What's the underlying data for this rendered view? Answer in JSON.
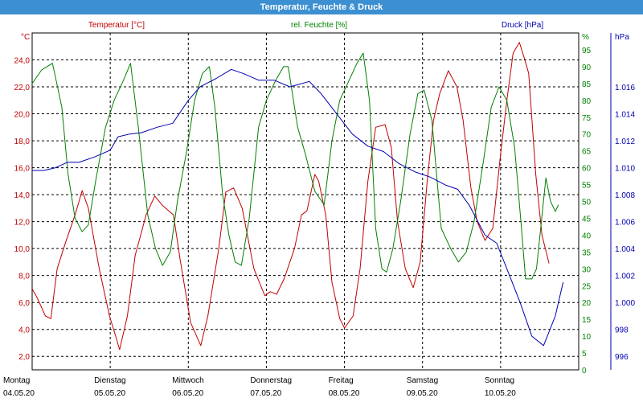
{
  "window": {
    "title": "Temperatur, Feuchte & Druck"
  },
  "colors": {
    "temperature": "#c00000",
    "humidity": "#008000",
    "pressure": "#0000b0",
    "grid": "#000000"
  },
  "chart_data": {
    "type": "line",
    "title": "Temperatur, Feuchte & Druck",
    "grid": true,
    "x_ticks": [
      {
        "day": "Montag",
        "date": "04.05.20"
      },
      {
        "day": "Dienstag",
        "date": "05.05.20"
      },
      {
        "day": "Mittwoch",
        "date": "06.05.20"
      },
      {
        "day": "Donnerstag",
        "date": "07.05.20"
      },
      {
        "day": "Freitag",
        "date": "08.05.20"
      },
      {
        "day": "Samstag",
        "date": "09.05.20"
      },
      {
        "day": "Sonntag",
        "date": "10.05.20"
      }
    ],
    "x_range_days": [
      0,
      7
    ],
    "axes": {
      "temperature": {
        "label": "Temperatur [°C]",
        "unit": "°C",
        "range": [
          1.0,
          26.0
        ],
        "ticks": [
          "2,0",
          "4,0",
          "6,0",
          "8,0",
          "10,0",
          "12,0",
          "14,0",
          "16,0",
          "18,0",
          "20,0",
          "22,0",
          "24,0"
        ],
        "tick_values": [
          2,
          4,
          6,
          8,
          10,
          12,
          14,
          16,
          18,
          20,
          22,
          24
        ]
      },
      "humidity": {
        "label": "rel. Feuchte [%]",
        "unit": "%",
        "range": [
          0,
          100
        ],
        "ticks": [
          "0",
          "5",
          "10",
          "15",
          "20",
          "25",
          "30",
          "35",
          "40",
          "45",
          "50",
          "55",
          "60",
          "65",
          "70",
          "75",
          "80",
          "85",
          "90",
          "95"
        ],
        "tick_values": [
          0,
          5,
          10,
          15,
          20,
          25,
          30,
          35,
          40,
          45,
          50,
          55,
          60,
          65,
          70,
          75,
          80,
          85,
          90,
          95
        ]
      },
      "pressure": {
        "label": "Druck [hPa]",
        "unit": "hPa",
        "range": [
          995,
          1020
        ],
        "ticks": [
          "996",
          "998",
          "1.000",
          "1.002",
          "1.004",
          "1.006",
          "1.008",
          "1.010",
          "1.012",
          "1.014",
          "1.016"
        ],
        "tick_values": [
          996,
          998,
          1000,
          1002,
          1004,
          1006,
          1008,
          1010,
          1012,
          1014,
          1016
        ]
      }
    },
    "series": [
      {
        "name": "Temperatur [°C]",
        "axis": "temperature",
        "points": [
          [
            0,
            7.0
          ],
          [
            0.06,
            6.4
          ],
          [
            0.17,
            5.0
          ],
          [
            0.24,
            4.8
          ],
          [
            0.32,
            8.5
          ],
          [
            0.43,
            10.5
          ],
          [
            0.55,
            12.5
          ],
          [
            0.64,
            14.3
          ],
          [
            0.72,
            13.0
          ],
          [
            0.86,
            8.5
          ],
          [
            0.99,
            5.0
          ],
          [
            1.07,
            3.5
          ],
          [
            1.12,
            2.5
          ],
          [
            1.22,
            5.0
          ],
          [
            1.32,
            9.5
          ],
          [
            1.46,
            12.5
          ],
          [
            1.57,
            13.9
          ],
          [
            1.67,
            13.2
          ],
          [
            1.81,
            12.5
          ],
          [
            1.9,
            9.0
          ],
          [
            2.03,
            4.5
          ],
          [
            2.16,
            2.8
          ],
          [
            2.25,
            5.0
          ],
          [
            2.39,
            10.0
          ],
          [
            2.48,
            14.2
          ],
          [
            2.58,
            14.5
          ],
          [
            2.69,
            13.0
          ],
          [
            2.84,
            8.5
          ],
          [
            2.98,
            6.5
          ],
          [
            3.05,
            6.8
          ],
          [
            3.13,
            6.6
          ],
          [
            3.23,
            7.8
          ],
          [
            3.36,
            10.0
          ],
          [
            3.45,
            12.5
          ],
          [
            3.52,
            12.8
          ],
          [
            3.62,
            15.5
          ],
          [
            3.67,
            15.0
          ],
          [
            3.76,
            12.5
          ],
          [
            3.84,
            7.5
          ],
          [
            3.94,
            4.8
          ],
          [
            4.0,
            4.1
          ],
          [
            4.11,
            5.0
          ],
          [
            4.2,
            8.5
          ],
          [
            4.3,
            15.0
          ],
          [
            4.4,
            19.0
          ],
          [
            4.52,
            19.2
          ],
          [
            4.6,
            17.5
          ],
          [
            4.68,
            12.0
          ],
          [
            4.78,
            8.5
          ],
          [
            4.88,
            7.1
          ],
          [
            4.97,
            9.0
          ],
          [
            5.06,
            15.0
          ],
          [
            5.14,
            19.5
          ],
          [
            5.22,
            21.5
          ],
          [
            5.33,
            23.2
          ],
          [
            5.44,
            22.0
          ],
          [
            5.52,
            19.5
          ],
          [
            5.62,
            14.5
          ],
          [
            5.7,
            12.0
          ],
          [
            5.8,
            10.6
          ],
          [
            5.9,
            11.5
          ],
          [
            5.99,
            16.5
          ],
          [
            6.08,
            21.0
          ],
          [
            6.16,
            24.5
          ],
          [
            6.24,
            25.3
          ],
          [
            6.3,
            24.2
          ],
          [
            6.36,
            23.0
          ],
          [
            6.45,
            15.5
          ],
          [
            6.53,
            11.0
          ],
          [
            6.62,
            8.9
          ]
        ]
      },
      {
        "name": "rel. Feuchte [%]",
        "axis": "humidity",
        "points": [
          [
            0,
            85
          ],
          [
            0.12,
            89
          ],
          [
            0.26,
            91
          ],
          [
            0.38,
            78
          ],
          [
            0.46,
            58
          ],
          [
            0.55,
            45
          ],
          [
            0.64,
            41
          ],
          [
            0.72,
            43
          ],
          [
            0.82,
            57
          ],
          [
            0.94,
            72
          ],
          [
            1.05,
            80
          ],
          [
            1.17,
            86
          ],
          [
            1.26,
            91
          ],
          [
            1.36,
            72
          ],
          [
            1.48,
            46
          ],
          [
            1.58,
            36
          ],
          [
            1.67,
            31
          ],
          [
            1.77,
            35
          ],
          [
            1.86,
            50
          ],
          [
            1.98,
            65
          ],
          [
            2.08,
            80
          ],
          [
            2.18,
            88
          ],
          [
            2.27,
            90
          ],
          [
            2.34,
            78
          ],
          [
            2.44,
            52
          ],
          [
            2.52,
            40
          ],
          [
            2.6,
            32
          ],
          [
            2.68,
            31
          ],
          [
            2.78,
            45
          ],
          [
            2.9,
            72
          ],
          [
            3.0,
            80
          ],
          [
            3.12,
            86
          ],
          [
            3.22,
            90
          ],
          [
            3.28,
            90
          ],
          [
            3.4,
            72
          ],
          [
            3.5,
            64
          ],
          [
            3.62,
            53
          ],
          [
            3.74,
            49
          ],
          [
            3.84,
            68
          ],
          [
            3.94,
            80
          ],
          [
            4.06,
            86
          ],
          [
            4.16,
            91
          ],
          [
            4.24,
            94
          ],
          [
            4.32,
            80
          ],
          [
            4.4,
            42
          ],
          [
            4.48,
            30
          ],
          [
            4.54,
            29
          ],
          [
            4.62,
            36
          ],
          [
            4.72,
            50
          ],
          [
            4.84,
            70
          ],
          [
            4.94,
            82
          ],
          [
            5.02,
            83
          ],
          [
            5.12,
            74
          ],
          [
            5.24,
            42
          ],
          [
            5.36,
            36
          ],
          [
            5.46,
            32
          ],
          [
            5.56,
            35
          ],
          [
            5.66,
            44
          ],
          [
            5.78,
            62
          ],
          [
            5.88,
            78
          ],
          [
            5.98,
            84
          ],
          [
            6.08,
            80
          ],
          [
            6.18,
            66
          ],
          [
            6.26,
            44
          ],
          [
            6.32,
            27
          ],
          [
            6.4,
            27
          ],
          [
            6.46,
            30
          ],
          [
            6.54,
            48
          ],
          [
            6.58,
            57
          ],
          [
            6.64,
            50
          ],
          [
            6.7,
            47
          ],
          [
            6.74,
            49
          ]
        ]
      },
      {
        "name": "Druck [hPa]",
        "axis": "pressure",
        "points": [
          [
            0,
            1009.8
          ],
          [
            0.15,
            1009.8
          ],
          [
            0.3,
            1010.0
          ],
          [
            0.45,
            1010.4
          ],
          [
            0.6,
            1010.4
          ],
          [
            0.8,
            1010.8
          ],
          [
            1.0,
            1011.3
          ],
          [
            1.1,
            1012.3
          ],
          [
            1.25,
            1012.5
          ],
          [
            1.4,
            1012.6
          ],
          [
            1.6,
            1013.0
          ],
          [
            1.8,
            1013.3
          ],
          [
            2.0,
            1015.0
          ],
          [
            2.15,
            1016.0
          ],
          [
            2.35,
            1016.6
          ],
          [
            2.55,
            1017.3
          ],
          [
            2.7,
            1017.0
          ],
          [
            2.9,
            1016.5
          ],
          [
            3.1,
            1016.5
          ],
          [
            3.3,
            1016.0
          ],
          [
            3.55,
            1016.4
          ],
          [
            3.7,
            1015.5
          ],
          [
            3.9,
            1014.0
          ],
          [
            4.1,
            1012.5
          ],
          [
            4.3,
            1011.6
          ],
          [
            4.5,
            1011.2
          ],
          [
            4.7,
            1010.3
          ],
          [
            4.9,
            1009.7
          ],
          [
            5.1,
            1009.3
          ],
          [
            5.3,
            1008.7
          ],
          [
            5.45,
            1008.4
          ],
          [
            5.6,
            1007.2
          ],
          [
            5.8,
            1005.0
          ],
          [
            5.95,
            1004.4
          ],
          [
            6.1,
            1002.2
          ],
          [
            6.25,
            1000.0
          ],
          [
            6.4,
            997.5
          ],
          [
            6.55,
            996.8
          ],
          [
            6.7,
            999.0
          ],
          [
            6.8,
            1001.5
          ]
        ]
      }
    ]
  }
}
